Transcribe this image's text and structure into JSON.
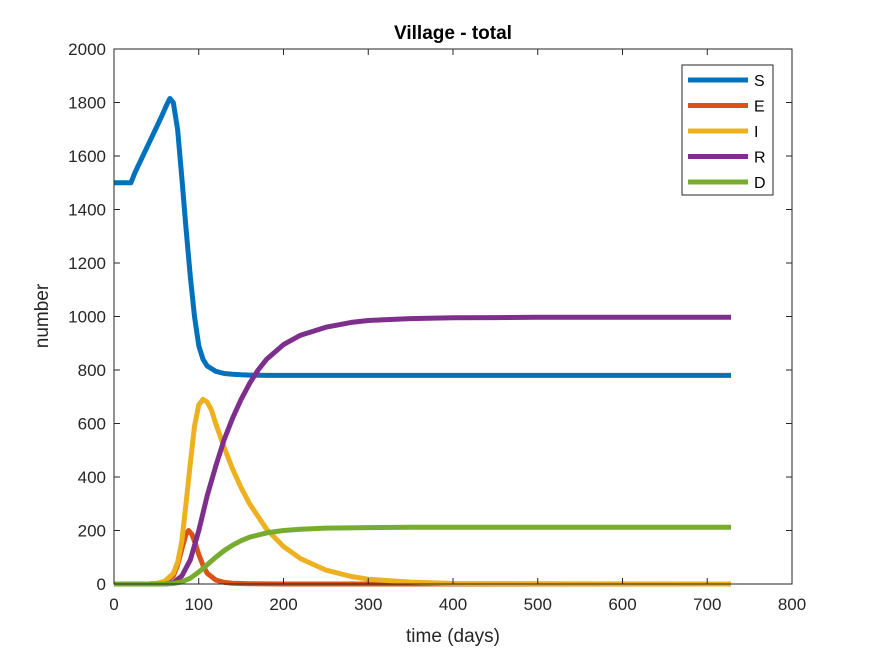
{
  "chart_data": {
    "type": "line",
    "title": "Village - total",
    "xlabel": "time (days)",
    "ylabel": "number",
    "xlim": [
      0,
      800
    ],
    "ylim": [
      0,
      2000
    ],
    "xticks": [
      0,
      100,
      200,
      300,
      400,
      500,
      600,
      700,
      800
    ],
    "yticks": [
      0,
      200,
      400,
      600,
      800,
      1000,
      1200,
      1400,
      1600,
      1800,
      2000
    ],
    "grid": false,
    "legend_position": "top-right",
    "series": [
      {
        "name": "S",
        "color": "#0072BD",
        "x": [
          0,
          20,
          25,
          40,
          55,
          62,
          66,
          70,
          75,
          80,
          85,
          90,
          95,
          100,
          105,
          110,
          120,
          130,
          140,
          150,
          160,
          180,
          200,
          300,
          400,
          500,
          600,
          728
        ],
        "y": [
          1500,
          1500,
          1540,
          1640,
          1740,
          1790,
          1815,
          1800,
          1700,
          1520,
          1330,
          1150,
          1000,
          890,
          840,
          815,
          795,
          787,
          784,
          782,
          781,
          780,
          780,
          780,
          780,
          780,
          780,
          780
        ]
      },
      {
        "name": "E",
        "color": "#D95319",
        "x": [
          0,
          40,
          50,
          60,
          70,
          75,
          80,
          85,
          88,
          92,
          96,
          100,
          105,
          110,
          120,
          130,
          140,
          160,
          200,
          728
        ],
        "y": [
          0,
          0,
          2,
          8,
          30,
          70,
          130,
          185,
          200,
          185,
          150,
          110,
          70,
          40,
          15,
          6,
          3,
          1,
          0,
          0
        ]
      },
      {
        "name": "I",
        "color": "#EDB120",
        "x": [
          0,
          40,
          50,
          60,
          70,
          75,
          80,
          85,
          90,
          95,
          100,
          105,
          110,
          115,
          120,
          130,
          140,
          150,
          160,
          180,
          200,
          220,
          250,
          280,
          300,
          350,
          400,
          728
        ],
        "y": [
          0,
          0,
          2,
          10,
          40,
          80,
          160,
          300,
          450,
          590,
          670,
          690,
          680,
          650,
          600,
          510,
          430,
          360,
          300,
          205,
          140,
          95,
          52,
          28,
          18,
          7,
          2,
          0
        ]
      },
      {
        "name": "R",
        "color": "#7E2F8E",
        "x": [
          0,
          60,
          70,
          80,
          90,
          100,
          110,
          120,
          130,
          140,
          150,
          160,
          170,
          180,
          200,
          220,
          250,
          280,
          300,
          350,
          400,
          450,
          500,
          600,
          728
        ],
        "y": [
          0,
          0,
          5,
          30,
          90,
          200,
          330,
          440,
          540,
          620,
          690,
          750,
          800,
          840,
          895,
          930,
          960,
          978,
          985,
          992,
          995,
          996,
          997,
          997,
          997
        ]
      },
      {
        "name": "D",
        "color": "#77AC30",
        "x": [
          0,
          60,
          70,
          80,
          90,
          100,
          110,
          120,
          130,
          140,
          150,
          160,
          180,
          200,
          220,
          250,
          300,
          350,
          400,
          500,
          600,
          728
        ],
        "y": [
          0,
          0,
          2,
          8,
          22,
          45,
          72,
          100,
          125,
          145,
          162,
          175,
          191,
          200,
          205,
          209,
          211,
          212,
          212,
          212,
          212,
          212
        ]
      }
    ]
  }
}
